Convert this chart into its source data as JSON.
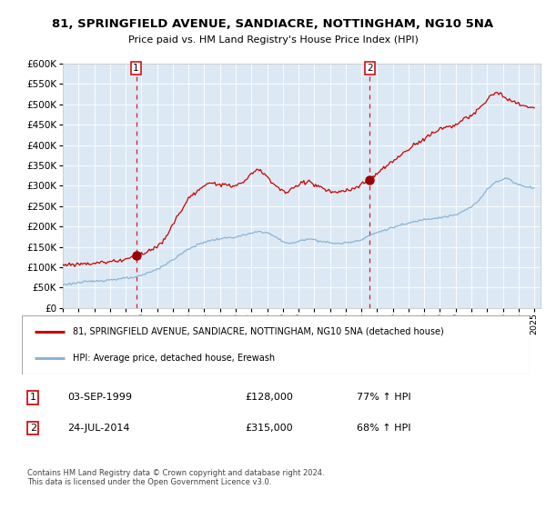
{
  "title1": "81, SPRINGFIELD AVENUE, SANDIACRE, NOTTINGHAM, NG10 5NA",
  "title2": "Price paid vs. HM Land Registry's House Price Index (HPI)",
  "bg_color": "#dce9f5",
  "red_line_color": "#cc0000",
  "blue_line_color": "#8ab4d4",
  "marker_color": "#990000",
  "vline_color": "#cc0000",
  "grid_color": "#ffffff",
  "purchase1_year": 1999.667,
  "purchase1_price": 128000,
  "purchase2_year": 2014.542,
  "purchase2_price": 315000,
  "legend_entry1": "81, SPRINGFIELD AVENUE, SANDIACRE, NOTTINGHAM, NG10 5NA (detached house)",
  "legend_entry2": "HPI: Average price, detached house, Erewash",
  "table_row1": [
    "1",
    "03-SEP-1999",
    "£128,000",
    "77% ↑ HPI"
  ],
  "table_row2": [
    "2",
    "24-JUL-2014",
    "£315,000",
    "68% ↑ HPI"
  ],
  "footer": "Contains HM Land Registry data © Crown copyright and database right 2024.\nThis data is licensed under the Open Government Licence v3.0."
}
